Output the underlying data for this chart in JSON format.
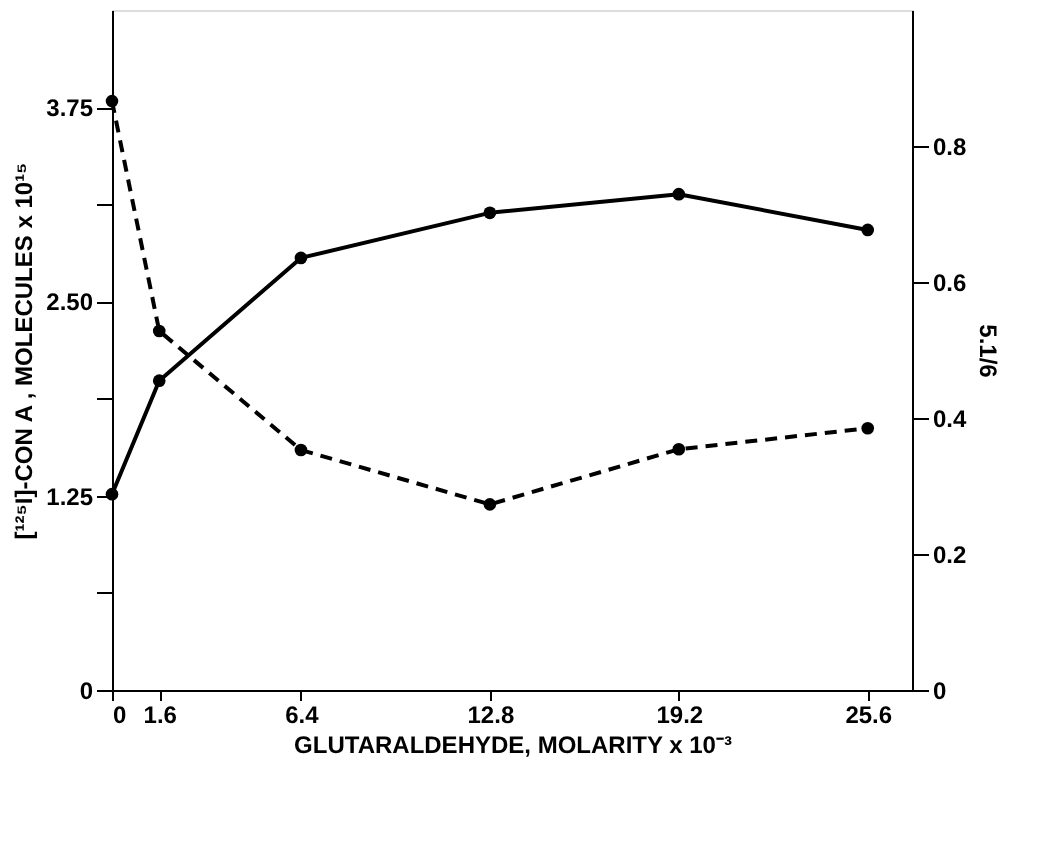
{
  "chart_data": {
    "type": "line",
    "xlabel": "GLUTARALDEHYDE, MOLARITY x 10⁻³",
    "ylabel": "[¹²⁵I]-CON A , MOLECULES x 10¹⁵",
    "y2label": "5.1/6",
    "x": [
      0,
      1.6,
      6.4,
      12.8,
      19.2,
      25.6
    ],
    "xlim": [
      0,
      27.1
    ],
    "xticks": [
      0,
      1.6,
      6.4,
      12.8,
      19.2,
      25.6
    ],
    "ylim": [
      0,
      4.375
    ],
    "yticks": [
      0,
      {
        "value": 0.625,
        "label": null
      },
      {
        "value": 1.25,
        "label": "1.25"
      },
      {
        "value": 1.875,
        "label": null
      },
      {
        "value": 2.5,
        "label": "2.50"
      },
      {
        "value": 3.125,
        "label": null
      },
      {
        "value": 3.75,
        "label": "3.75"
      }
    ],
    "y2lim": [
      0,
      1.0
    ],
    "y2ticks": [
      0,
      0.2,
      0.4,
      0.6,
      0.8
    ],
    "grid": false,
    "marker": "circle",
    "series": [
      {
        "color": "#000000",
        "line_style": "solid",
        "values": [
          1.26,
          1.99,
          2.78,
          3.07,
          3.19,
          2.96
        ]
      },
      {
        "color": "#000000",
        "line_style": "dashed",
        "axis": "y2",
        "values": [
          0.866,
          0.528,
          0.353,
          0.273,
          0.354,
          0.385
        ]
      }
    ]
  }
}
